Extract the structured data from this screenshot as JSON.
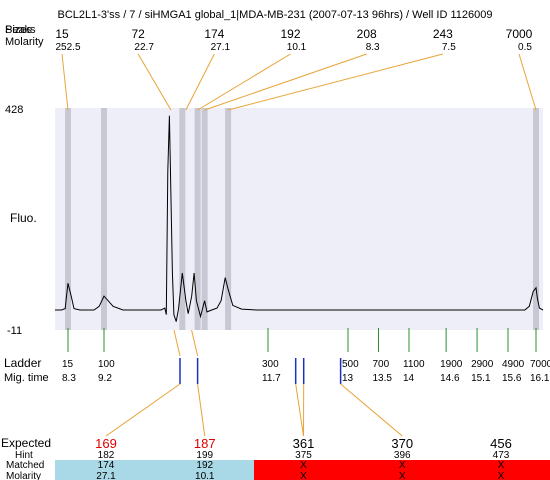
{
  "header": {
    "title": "BCL2L1-3'ss / 7 / siHMGA1 global_1|MDA-MB-231 (2007-07-13 96hrs) / Well ID 1126009",
    "sizes_label": "Sizes",
    "peaks_label": "Peaks",
    "molarity_label": "Molarity"
  },
  "colors": {
    "plot_bg": "#eeeef9",
    "band": "#c8c8d4",
    "trace": "#000000",
    "leader": "#e8a438",
    "ladder_tick": "#2e8b2e",
    "fragment_tick": "#1f2fbf",
    "hint_red": "#e00000",
    "matched_ok": "#a9d8e6",
    "matched_bad": "#ff0000"
  },
  "chart_data": {
    "type": "line",
    "title": "BCL2L1-3'ss / 7 / siHMGA1 global_1|MDA-MB-231 (2007-07-13 96hrs) / Well ID 1126009",
    "ylabel": "Fluo.",
    "xlabel": "",
    "y_ticks": [
      "428",
      "-11"
    ],
    "ylim": [
      -11,
      428
    ],
    "grid": false,
    "peaks": [
      {
        "size": "15",
        "molarity": "252.5",
        "mig_time": 8.3
      },
      {
        "size": "72",
        "molarity": "22.7",
        "mig_time": 10.08
      },
      {
        "size": "174",
        "molarity": "27.1",
        "mig_time": 10.3
      },
      {
        "size": "192",
        "molarity": "10.1",
        "mig_time": 10.5
      },
      {
        "size": "208",
        "molarity": "8.3",
        "mig_time": 10.62
      },
      {
        "size": "243",
        "molarity": "7.5",
        "mig_time": 11.02
      },
      {
        "size": "7000",
        "molarity": "0.5",
        "mig_time": 16.1
      }
    ],
    "bands": [
      8.3,
      9.2,
      10.24,
      10.5,
      10.62,
      11.02,
      16.1
    ],
    "trace": [
      [
        7.6,
        0
      ],
      [
        7.95,
        0
      ],
      [
        8.15,
        3
      ],
      [
        8.22,
        30
      ],
      [
        8.3,
        58
      ],
      [
        8.38,
        30
      ],
      [
        8.45,
        3
      ],
      [
        8.6,
        0
      ],
      [
        8.95,
        0
      ],
      [
        9.08,
        8
      ],
      [
        9.2,
        30
      ],
      [
        9.32,
        8
      ],
      [
        9.45,
        0
      ],
      [
        9.95,
        0
      ],
      [
        10.0,
        4
      ],
      [
        10.02,
        -10
      ],
      [
        10.04,
        300
      ],
      [
        10.06,
        420
      ],
      [
        10.08,
        250
      ],
      [
        10.1,
        80
      ],
      [
        10.12,
        -10
      ],
      [
        10.15,
        -25
      ],
      [
        10.18,
        2
      ],
      [
        10.24,
        80
      ],
      [
        10.3,
        20
      ],
      [
        10.34,
        -8
      ],
      [
        10.4,
        30
      ],
      [
        10.44,
        80
      ],
      [
        10.48,
        20
      ],
      [
        10.55,
        -14
      ],
      [
        10.62,
        20
      ],
      [
        10.66,
        -4
      ],
      [
        10.74,
        0
      ],
      [
        10.83,
        4
      ],
      [
        10.9,
        20
      ],
      [
        10.97,
        70
      ],
      [
        11.02,
        45
      ],
      [
        11.1,
        10
      ],
      [
        11.25,
        2
      ],
      [
        11.5,
        0
      ],
      [
        15.9,
        0
      ],
      [
        15.98,
        8
      ],
      [
        16.05,
        40
      ],
      [
        16.1,
        48
      ],
      [
        16.15,
        25
      ],
      [
        16.22,
        4
      ],
      [
        16.35,
        0
      ]
    ],
    "ladder_label": "Ladder",
    "mig_time_label": "Mig. time",
    "ladder": [
      {
        "size": "15",
        "mig_time": "8.3",
        "t": 8.3
      },
      {
        "size": "100",
        "mig_time": "9.2",
        "t": 9.2
      },
      {
        "size": "300",
        "mig_time": "11.7",
        "t": 11.7
      },
      {
        "size": "500",
        "mig_time": "13",
        "t": 13.0
      },
      {
        "size": "700",
        "mig_time": "13.5",
        "t": 13.5
      },
      {
        "size": "1100",
        "mig_time": "14",
        "t": 14.0
      },
      {
        "size": "1900",
        "mig_time": "14.6",
        "t": 14.6
      },
      {
        "size": "2900",
        "mig_time": "15.1",
        "t": 15.1
      },
      {
        "size": "4900",
        "mig_time": "15.6",
        "t": 15.6
      },
      {
        "size": "7000",
        "mig_time": "16.1",
        "t": 16.1
      }
    ],
    "fragment_marks": [
      {
        "t": 10.2,
        "group": 0
      },
      {
        "t": 10.5,
        "group": 1
      },
      {
        "t": 12.15,
        "group": 2
      },
      {
        "t": 12.28,
        "group": 2
      },
      {
        "t": 12.88,
        "group": 3
      }
    ],
    "expected_label": "Expected",
    "hint_label": "Hint",
    "matched_label": "Matched",
    "matched_molarity_label": "Molarity",
    "expected": [
      {
        "expected": "169",
        "hint": "182",
        "matched": "174",
        "molarity": "27.1",
        "ok": true
      },
      {
        "expected": "187",
        "hint": "199",
        "matched": "192",
        "molarity": "10.1",
        "ok": true
      },
      {
        "expected": "361",
        "hint": "375",
        "matched": "X",
        "molarity": "X",
        "ok": false
      },
      {
        "expected": "370",
        "hint": "396",
        "matched": "X",
        "molarity": "X",
        "ok": false
      },
      {
        "expected": "456",
        "hint": "473",
        "matched": "X",
        "molarity": "X",
        "ok": false
      }
    ]
  }
}
